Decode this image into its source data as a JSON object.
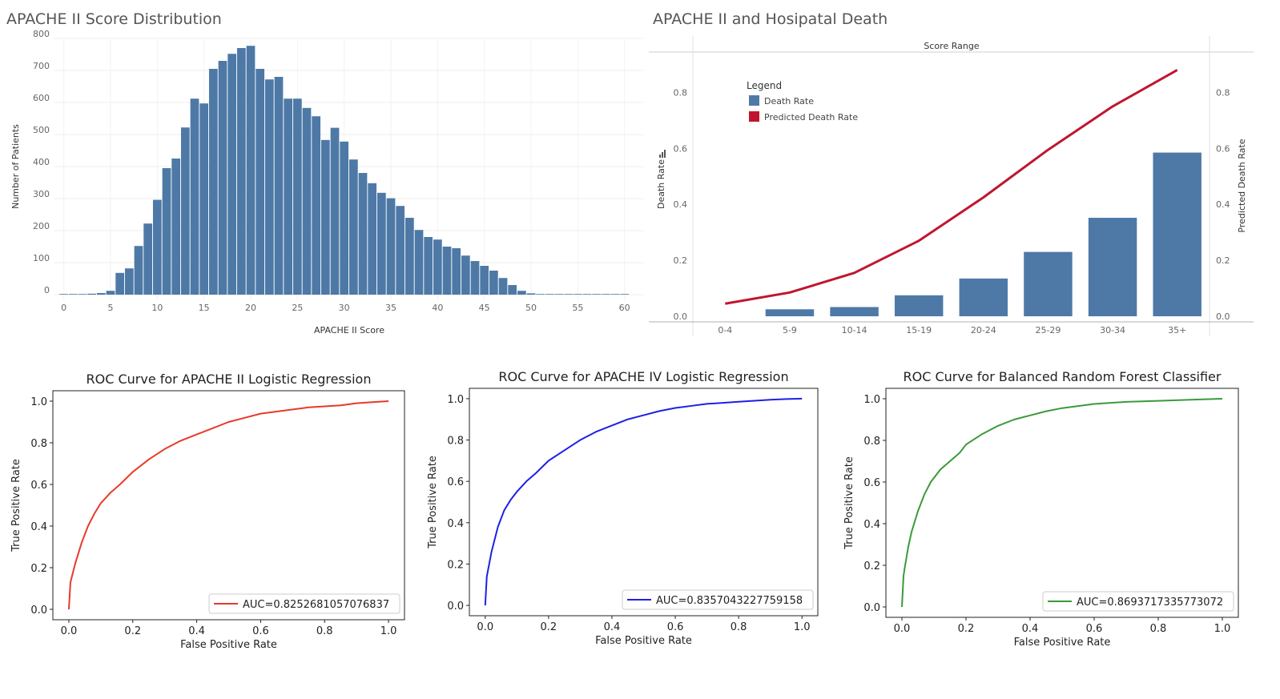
{
  "chart_data": [
    {
      "id": "hist",
      "type": "bar",
      "title": "APACHE II Score Distribution",
      "xlabel": "APACHE II Score",
      "ylabel": "Number of Patients",
      "xlim": [
        -1,
        62
      ],
      "ylim": [
        -20,
        800
      ],
      "xticks": [
        0,
        5,
        10,
        15,
        20,
        25,
        30,
        35,
        40,
        45,
        50,
        55,
        60
      ],
      "yticks": [
        0,
        100,
        200,
        300,
        400,
        500,
        600,
        700,
        800
      ],
      "bar_color": "#4e79a7",
      "grid": true,
      "x": [
        0,
        1,
        2,
        3,
        4,
        5,
        6,
        7,
        8,
        9,
        10,
        11,
        12,
        13,
        14,
        15,
        16,
        17,
        18,
        19,
        20,
        21,
        22,
        23,
        24,
        25,
        26,
        27,
        28,
        29,
        30,
        31,
        32,
        33,
        34,
        35,
        36,
        37,
        38,
        39,
        40,
        41,
        42,
        43,
        44,
        45,
        46,
        47,
        48,
        49,
        50,
        51,
        52,
        53,
        54,
        55,
        56,
        57,
        58,
        59,
        60
      ],
      "values": [
        0,
        0,
        2,
        3,
        5,
        12,
        68,
        82,
        152,
        222,
        296,
        395,
        425,
        522,
        612,
        597,
        705,
        730,
        752,
        770,
        777,
        705,
        672,
        680,
        612,
        612,
        583,
        557,
        483,
        521,
        478,
        422,
        380,
        348,
        318,
        301,
        277,
        240,
        202,
        180,
        172,
        150,
        145,
        122,
        105,
        90,
        75,
        52,
        30,
        12,
        4,
        2,
        1,
        1,
        1,
        1,
        0,
        0,
        0,
        0,
        0
      ]
    },
    {
      "id": "combo",
      "type": "bar",
      "title": "APACHE II and Hosipatal Death",
      "header": "Score Range",
      "ylabel": "Death Rate",
      "ylabel_right": "Predicted Death Rate",
      "legend_title": "Legend",
      "legend_position": "top-left",
      "categories": [
        "0-4",
        "5-9",
        "10-14",
        "15-19",
        "20-24",
        "25-29",
        "30-34",
        "35+"
      ],
      "ylim": [
        -0.02,
        0.93
      ],
      "yticks": [
        "0.0",
        "0.2",
        "0.4",
        "0.6",
        "0.8"
      ],
      "series": [
        {
          "name": "Death Rate",
          "kind": "bar",
          "color": "#4e79a7",
          "values": [
            0.0,
            0.025,
            0.033,
            0.075,
            0.135,
            0.23,
            0.352,
            0.585
          ]
        },
        {
          "name": "Predicted Death Rate",
          "kind": "line",
          "color": "#c0152f",
          "values": [
            0.045,
            0.085,
            0.155,
            0.27,
            0.425,
            0.595,
            0.75,
            0.88
          ]
        }
      ]
    },
    {
      "id": "roc1",
      "type": "line",
      "title": "ROC Curve for APACHE II Logistic Regression",
      "xlabel": "False Positive Rate",
      "ylabel": "True Positive Rate",
      "xlim": [
        -0.05,
        1.05
      ],
      "ylim": [
        -0.05,
        1.05
      ],
      "ticks": [
        "0.0",
        "0.2",
        "0.4",
        "0.6",
        "0.8",
        "1.0"
      ],
      "legend_position": "lower-right",
      "series": [
        {
          "name": "AUC=0.8252681057076837",
          "color": "#e8392a",
          "x": [
            0,
            0.005,
            0.01,
            0.02,
            0.04,
            0.06,
            0.08,
            0.1,
            0.13,
            0.16,
            0.2,
            0.25,
            0.3,
            0.35,
            0.4,
            0.45,
            0.5,
            0.55,
            0.6,
            0.65,
            0.7,
            0.75,
            0.8,
            0.85,
            0.9,
            0.95,
            1.0
          ],
          "y": [
            0,
            0.13,
            0.16,
            0.22,
            0.32,
            0.4,
            0.46,
            0.51,
            0.56,
            0.6,
            0.66,
            0.72,
            0.77,
            0.81,
            0.84,
            0.87,
            0.9,
            0.92,
            0.94,
            0.95,
            0.96,
            0.97,
            0.975,
            0.98,
            0.99,
            0.995,
            1.0
          ]
        }
      ]
    },
    {
      "id": "roc2",
      "type": "line",
      "title": "ROC Curve for APACHE IV Logistic Regression",
      "xlabel": "False Positive Rate",
      "ylabel": "True Positive Rate",
      "xlim": [
        -0.05,
        1.05
      ],
      "ylim": [
        -0.05,
        1.05
      ],
      "ticks": [
        "0.0",
        "0.2",
        "0.4",
        "0.6",
        "0.8",
        "1.0"
      ],
      "legend_position": "lower-right",
      "series": [
        {
          "name": "AUC=0.8357043227759158",
          "color": "#1f1fe6",
          "x": [
            0,
            0.005,
            0.01,
            0.02,
            0.04,
            0.06,
            0.08,
            0.1,
            0.13,
            0.16,
            0.2,
            0.25,
            0.3,
            0.35,
            0.4,
            0.45,
            0.5,
            0.55,
            0.6,
            0.65,
            0.7,
            0.75,
            0.8,
            0.85,
            0.9,
            0.95,
            1.0
          ],
          "y": [
            0,
            0.14,
            0.18,
            0.26,
            0.38,
            0.46,
            0.51,
            0.55,
            0.6,
            0.64,
            0.7,
            0.75,
            0.8,
            0.84,
            0.87,
            0.9,
            0.92,
            0.94,
            0.955,
            0.965,
            0.975,
            0.98,
            0.985,
            0.99,
            0.995,
            0.998,
            1.0
          ]
        }
      ]
    },
    {
      "id": "roc3",
      "type": "line",
      "title": "ROC Curve for Balanced Random Forest Classifier",
      "xlabel": "False Positive Rate",
      "ylabel": "True Positive Rate",
      "xlim": [
        -0.05,
        1.05
      ],
      "ylim": [
        -0.05,
        1.05
      ],
      "ticks": [
        "0.0",
        "0.2",
        "0.4",
        "0.6",
        "0.8",
        "1.0"
      ],
      "legend_position": "lower-right",
      "series": [
        {
          "name": "AUC=0.8693717335773072",
          "color": "#3a9a3a",
          "x": [
            0,
            0.005,
            0.01,
            0.02,
            0.03,
            0.05,
            0.07,
            0.09,
            0.12,
            0.15,
            0.18,
            0.2,
            0.25,
            0.3,
            0.35,
            0.4,
            0.45,
            0.5,
            0.55,
            0.6,
            0.7,
            0.8,
            0.9,
            1.0
          ],
          "y": [
            0,
            0.15,
            0.2,
            0.29,
            0.36,
            0.46,
            0.54,
            0.6,
            0.66,
            0.7,
            0.74,
            0.78,
            0.83,
            0.87,
            0.9,
            0.92,
            0.94,
            0.955,
            0.965,
            0.975,
            0.985,
            0.99,
            0.995,
            1.0
          ]
        }
      ]
    }
  ]
}
